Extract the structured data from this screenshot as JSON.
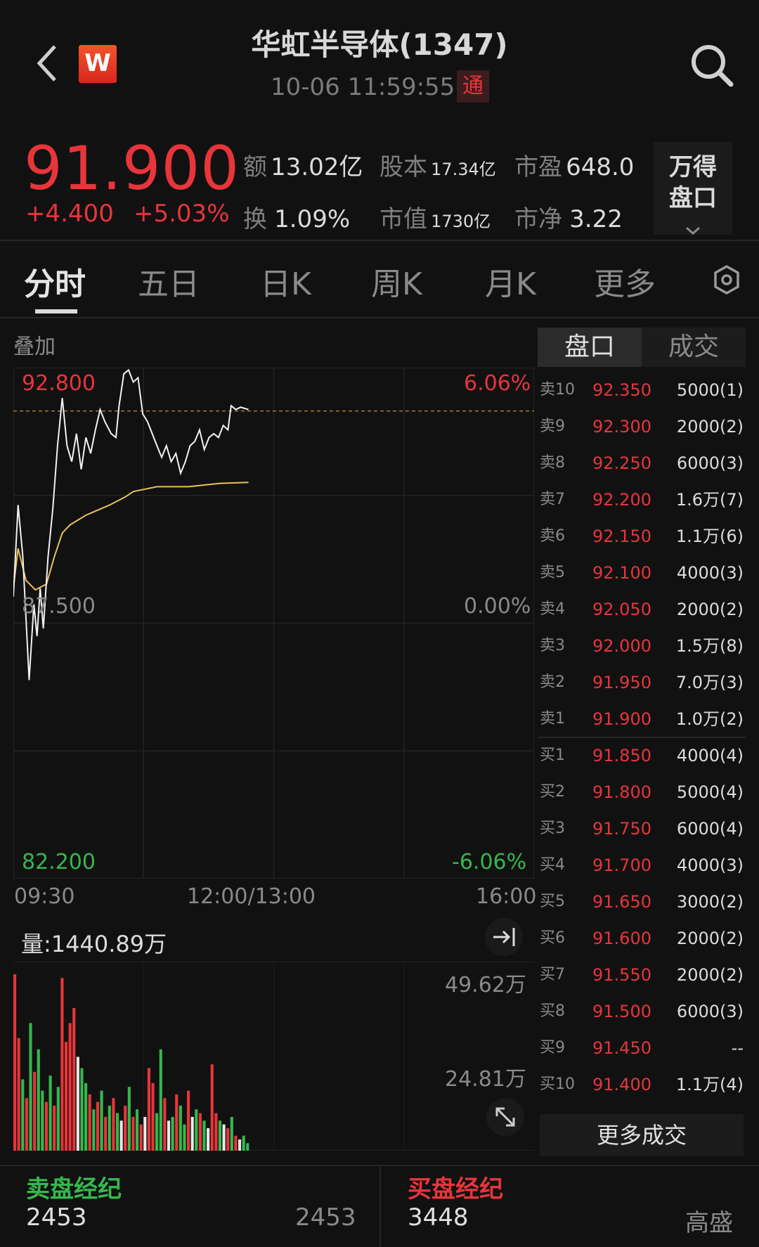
{
  "header": {
    "title": "华虹半导体(1347)",
    "timestamp": "10-06 11:59:55",
    "connect_badge": "通",
    "logo_letter": "W",
    "icons": [
      "back-chevron-icon",
      "search-icon"
    ]
  },
  "quote": {
    "price": "91.900",
    "change": "+4.400",
    "change_pct": "+5.03%",
    "stats": [
      {
        "label": "额",
        "value": "13.02亿"
      },
      {
        "label": "股本",
        "value": "17.34亿"
      },
      {
        "label": "市盈",
        "value": "648.0"
      },
      {
        "label": "换",
        "value": "1.09%"
      },
      {
        "label": "市值",
        "value": "1730亿"
      },
      {
        "label": "市净",
        "value": "3.22"
      }
    ],
    "wande_button": {
      "line1": "万得",
      "line2": "盘口"
    }
  },
  "tabs": [
    {
      "label": "分时",
      "active": true
    },
    {
      "label": "五日"
    },
    {
      "label": "日K"
    },
    {
      "label": "周K"
    },
    {
      "label": "月K"
    },
    {
      "label": "更多"
    }
  ],
  "overlay_label": "叠加",
  "colors": {
    "up": "#e8353a",
    "down": "#35b84c",
    "avg_line": "#e8c05a",
    "price_line": "#f2f2f2",
    "background": "#111112"
  },
  "chart_data": [
    {
      "type": "line",
      "y_labels": {
        "top": "92.800",
        "mid": "87.500",
        "bottom": "82.200"
      },
      "pct_labels": {
        "top": "6.06%",
        "mid": "0.00%",
        "bottom": "-6.06%"
      },
      "x_labels": [
        "09:30",
        "12:00/13:00",
        "16:00"
      ],
      "ylim": [
        82.2,
        92.8
      ],
      "prev_close": 87.5,
      "current_price_line": 91.9,
      "series": [
        {
          "key": "price",
          "points": [
            [
              "09:30",
              88.05
            ],
            [
              "09:33",
              89.95
            ],
            [
              "09:36",
              88.88
            ],
            [
              "09:40",
              86.32
            ],
            [
              "09:43",
              87.89
            ],
            [
              "09:45",
              87.23
            ],
            [
              "09:47",
              88.22
            ],
            [
              "09:49",
              87.39
            ],
            [
              "09:52",
              88.88
            ],
            [
              "09:55",
              89.87
            ],
            [
              "09:58",
              91.18
            ],
            [
              "10:01",
              92.17
            ],
            [
              "10:04",
              91.18
            ],
            [
              "10:07",
              90.85
            ],
            [
              "10:10",
              91.43
            ],
            [
              "10:13",
              90.69
            ],
            [
              "10:16",
              91.35
            ],
            [
              "10:19",
              91.02
            ],
            [
              "10:22",
              91.51
            ],
            [
              "10:25",
              91.93
            ],
            [
              "10:28",
              91.68
            ],
            [
              "10:32",
              91.43
            ],
            [
              "10:35",
              91.35
            ],
            [
              "10:37",
              92.01
            ],
            [
              "10:40",
              92.67
            ],
            [
              "10:43",
              92.75
            ],
            [
              "10:46",
              92.5
            ],
            [
              "10:49",
              92.59
            ],
            [
              "10:52",
              91.84
            ],
            [
              "10:55",
              91.68
            ],
            [
              "10:58",
              91.43
            ],
            [
              "11:01",
              91.18
            ],
            [
              "11:04",
              90.94
            ],
            [
              "11:07",
              91.18
            ],
            [
              "11:10",
              90.85
            ],
            [
              "11:13",
              91.02
            ],
            [
              "11:16",
              90.61
            ],
            [
              "11:19",
              90.85
            ],
            [
              "11:22",
              91.18
            ],
            [
              "11:25",
              91.27
            ],
            [
              "11:28",
              91.51
            ],
            [
              "11:31",
              91.1
            ],
            [
              "11:34",
              91.35
            ],
            [
              "11:37",
              91.43
            ],
            [
              "11:40",
              91.35
            ],
            [
              "11:43",
              91.6
            ],
            [
              "11:46",
              91.51
            ],
            [
              "11:48",
              92.01
            ],
            [
              "11:51",
              91.93
            ],
            [
              "11:54",
              91.98
            ],
            [
              "11:59",
              91.93
            ]
          ]
        },
        {
          "key": "average",
          "points": [
            [
              "09:30",
              88.22
            ],
            [
              "09:33",
              89.05
            ],
            [
              "09:38",
              88.39
            ],
            [
              "09:44",
              88.19
            ],
            [
              "09:51",
              88.31
            ],
            [
              "09:56",
              88.88
            ],
            [
              "10:01",
              89.37
            ],
            [
              "10:06",
              89.54
            ],
            [
              "10:16",
              89.74
            ],
            [
              "10:31",
              89.95
            ],
            [
              "10:41",
              90.12
            ],
            [
              "10:46",
              90.23
            ],
            [
              "11:01",
              90.33
            ],
            [
              "11:21",
              90.33
            ],
            [
              "11:41",
              90.4
            ],
            [
              "11:59",
              90.42
            ]
          ]
        }
      ]
    },
    {
      "type": "bar",
      "title": "量:1440.89万",
      "y_labels": [
        "49.62万",
        "24.81万"
      ],
      "ylim": [
        0,
        49.62
      ],
      "unit": "万",
      "values": [
        47,
        30,
        19,
        14,
        34,
        21,
        27,
        16,
        13,
        20,
        12,
        17,
        46,
        29,
        34,
        38,
        25,
        22,
        18,
        15,
        11,
        13,
        16,
        9,
        12,
        14,
        10,
        8,
        12,
        17,
        9,
        11,
        7,
        9,
        22,
        18,
        10,
        27,
        14,
        8,
        9,
        15,
        12,
        7,
        16,
        9,
        11,
        10,
        8,
        6,
        23,
        10,
        8,
        7,
        6,
        9,
        4,
        3,
        4,
        2
      ],
      "bar_colors": [
        "r",
        "r",
        "g",
        "r",
        "g",
        "r",
        "g",
        "g",
        "r",
        "g",
        "r",
        "g",
        "r",
        "r",
        "r",
        "r",
        "w",
        "g",
        "g",
        "r",
        "g",
        "r",
        "g",
        "r",
        "g",
        "r",
        "g",
        "w",
        "r",
        "g",
        "r",
        "g",
        "r",
        "w",
        "r",
        "r",
        "g",
        "g",
        "r",
        "w",
        "g",
        "r",
        "g",
        "g",
        "r",
        "w",
        "g",
        "r",
        "g",
        "w",
        "r",
        "r",
        "g",
        "w",
        "r",
        "g",
        "r",
        "w",
        "g",
        "g"
      ]
    }
  ],
  "order_book": {
    "tabs": [
      "盘口",
      "成交"
    ],
    "asks": [
      {
        "level": "卖10",
        "price": "92.350",
        "volume": "5000(1)"
      },
      {
        "level": "卖9",
        "price": "92.300",
        "volume": "2000(2)"
      },
      {
        "level": "卖8",
        "price": "92.250",
        "volume": "6000(3)"
      },
      {
        "level": "卖7",
        "price": "92.200",
        "volume": "1.6万(7)"
      },
      {
        "level": "卖6",
        "price": "92.150",
        "volume": "1.1万(6)"
      },
      {
        "level": "卖5",
        "price": "92.100",
        "volume": "4000(3)"
      },
      {
        "level": "卖4",
        "price": "92.050",
        "volume": "2000(2)"
      },
      {
        "level": "卖3",
        "price": "92.000",
        "volume": "1.5万(8)"
      },
      {
        "level": "卖2",
        "price": "91.950",
        "volume": "7.0万(3)"
      },
      {
        "level": "卖1",
        "price": "91.900",
        "volume": "1.0万(2)"
      }
    ],
    "bids": [
      {
        "level": "买1",
        "price": "91.850",
        "volume": "4000(4)"
      },
      {
        "level": "买2",
        "price": "91.800",
        "volume": "5000(4)"
      },
      {
        "level": "买3",
        "price": "91.750",
        "volume": "6000(4)"
      },
      {
        "level": "买4",
        "price": "91.700",
        "volume": "4000(3)"
      },
      {
        "level": "买5",
        "price": "91.650",
        "volume": "3000(2)"
      },
      {
        "level": "买6",
        "price": "91.600",
        "volume": "2000(2)"
      },
      {
        "level": "买7",
        "price": "91.550",
        "volume": "2000(2)"
      },
      {
        "level": "买8",
        "price": "91.500",
        "volume": "6000(3)"
      },
      {
        "level": "买9",
        "price": "91.450",
        "volume": "--"
      },
      {
        "level": "买10",
        "price": "91.400",
        "volume": "1.1万(4)"
      }
    ],
    "more_trades": "更多成交"
  },
  "brokers": {
    "sell": {
      "title": "卖盘经纪",
      "id": "2453",
      "name": "2453"
    },
    "buy": {
      "title": "买盘经纪",
      "id": "3448",
      "name": "高盛"
    }
  }
}
